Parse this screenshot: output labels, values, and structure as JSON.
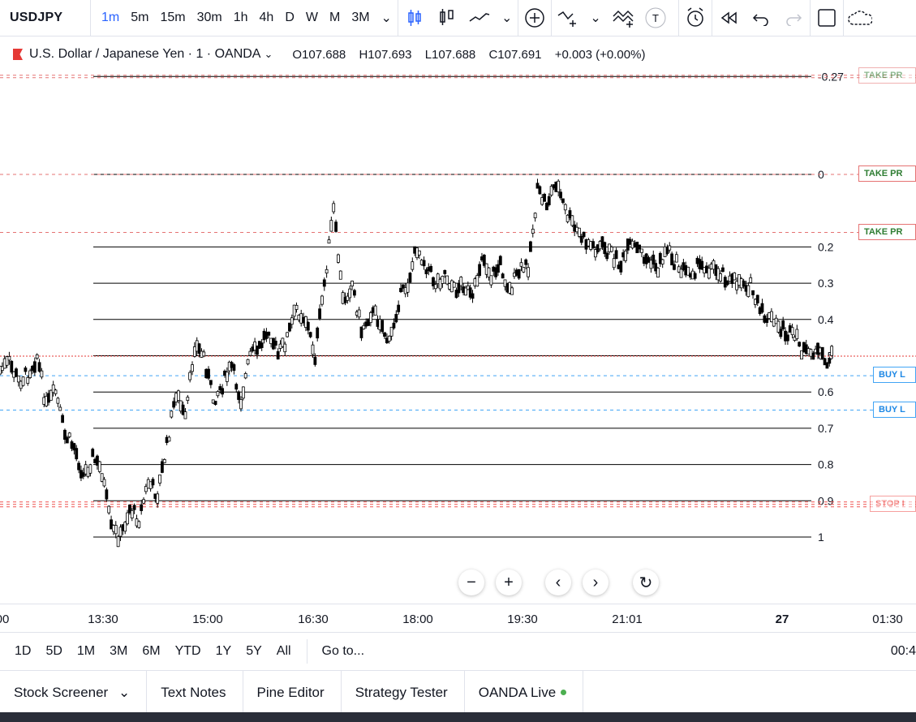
{
  "toolbar": {
    "symbol": "USDJPY",
    "intervals": [
      "1m",
      "5m",
      "15m",
      "30m",
      "1h",
      "4h",
      "D",
      "W",
      "M",
      "3M"
    ],
    "active_interval": "1m",
    "icons": [
      "candle-style-icon",
      "bar-style-icon",
      "indicators-icon",
      "add-compare-icon",
      "fib-tool-icon",
      "pattern-icon",
      "text-tool-icon",
      "alert-icon",
      "replay-icon",
      "undo-icon",
      "redo-icon",
      "layout-icon",
      "cloud-icon"
    ]
  },
  "legend": {
    "name": "U.S. Dollar / Japanese Yen · 1 · OANDA",
    "open_label": "O",
    "open": "107.688",
    "high_label": "H",
    "high": "107.693",
    "low_label": "L",
    "low": "107.688",
    "close_label": "C",
    "close": "107.691",
    "change": "+0.003 (+0.00%)"
  },
  "fib_levels": [
    {
      "label": "-0.27",
      "ratio": -0.27
    },
    {
      "label": "0",
      "ratio": 0
    },
    {
      "label": "0.2",
      "ratio": 0.2
    },
    {
      "label": "0.3",
      "ratio": 0.3
    },
    {
      "label": "0.4",
      "ratio": 0.4
    },
    {
      "label": "0.5",
      "ratio": 0.5
    },
    {
      "label": "0.6",
      "ratio": 0.6
    },
    {
      "label": "0.7",
      "ratio": 0.7
    },
    {
      "label": "0.8",
      "ratio": 0.8
    },
    {
      "label": "0.9",
      "ratio": 0.9
    },
    {
      "label": "1",
      "ratio": 1
    }
  ],
  "orders": [
    {
      "label": "TAKE PR",
      "kind": "tp",
      "ratio": -0.27,
      "faded": true
    },
    {
      "label": "TAKE PR",
      "kind": "tp",
      "ratio": 0,
      "faded": false
    },
    {
      "label": "TAKE PR",
      "kind": "tp",
      "ratio": 0.16,
      "faded": false
    },
    {
      "label": "BUY L",
      "kind": "buy",
      "ratio": 0.555,
      "faded": false
    },
    {
      "label": "BUY L",
      "kind": "buy",
      "ratio": 0.65,
      "faded": false
    },
    {
      "label": "STOP I",
      "kind": "sl",
      "ratio": 0.91,
      "faded": true
    }
  ],
  "chart_data": {
    "type": "candlestick",
    "x_ticks": [
      "00",
      "13:30",
      "15:00",
      "16:30",
      "18:00",
      "19:30",
      "21:01",
      "27",
      "01:30"
    ],
    "price_scale": "fib ratio",
    "series_path_ratios": [
      0.54,
      0.52,
      0.57,
      0.55,
      0.5,
      0.64,
      0.6,
      0.72,
      0.75,
      0.83,
      0.78,
      0.82,
      0.98,
      1.0,
      0.92,
      0.95,
      0.85,
      0.88,
      0.75,
      0.6,
      0.68,
      0.47,
      0.5,
      0.62,
      0.58,
      0.53,
      0.62,
      0.5,
      0.48,
      0.42,
      0.5,
      0.45,
      0.37,
      0.4,
      0.5,
      0.3,
      0.1,
      0.35,
      0.3,
      0.43,
      0.38,
      0.4,
      0.47,
      0.35,
      0.3,
      0.2,
      0.25,
      0.3,
      0.27,
      0.32,
      0.3,
      0.35,
      0.22,
      0.28,
      0.25,
      0.32,
      0.27,
      0.25,
      0.05,
      0.08,
      0.02,
      0.1,
      0.15,
      0.18,
      0.2,
      0.2,
      0.22,
      0.25,
      0.2,
      0.21,
      0.24,
      0.26,
      0.2,
      0.25,
      0.27,
      0.26,
      0.25,
      0.26,
      0.27,
      0.3,
      0.29,
      0.31,
      0.38,
      0.4,
      0.42,
      0.44,
      0.46,
      0.5,
      0.48,
      0.52,
      0.5
    ]
  },
  "nav": {
    "zoom_out": "−",
    "zoom_in": "+",
    "left": "‹",
    "right": "›",
    "reset": "↻"
  },
  "time_axis": [
    {
      "label": "00",
      "x": 3
    },
    {
      "label": "13:30",
      "x": 127
    },
    {
      "label": "15:00",
      "x": 256
    },
    {
      "label": "16:30",
      "x": 386
    },
    {
      "label": "18:00",
      "x": 515
    },
    {
      "label": "19:30",
      "x": 644
    },
    {
      "label": "21:01",
      "x": 773
    },
    {
      "label": "27",
      "x": 964
    },
    {
      "label": "01:30",
      "x": 1094
    }
  ],
  "ranges": [
    "1D",
    "5D",
    "1M",
    "3M",
    "6M",
    "YTD",
    "1Y",
    "5Y",
    "All"
  ],
  "goto": "Go to...",
  "clock": "00:4",
  "bottom_tabs": [
    "Stock Screener",
    "Text Notes",
    "Pine Editor",
    "Strategy Tester",
    "OANDA Live"
  ],
  "colors": {
    "accent": "#2962ff",
    "tp": "#e57373",
    "buy": "#42a5f5",
    "sl": "#ef5350",
    "tp_text": "#2e7d32",
    "current_price": "#e53935"
  }
}
